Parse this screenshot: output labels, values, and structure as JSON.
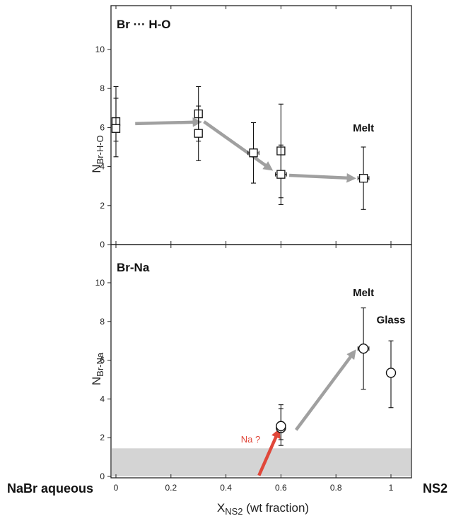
{
  "chart_data": [
    {
      "type": "scatter",
      "panel_label": "Br ··· H-O",
      "ylabel_main": "N",
      "ylabel_sub": "Br-H-O",
      "xlim": [
        -0.04,
        1.08
      ],
      "ylim": [
        0,
        11.5
      ],
      "yticks": [
        0,
        2,
        4,
        6,
        8,
        10
      ],
      "marker": "square",
      "points": [
        {
          "x": 0.0,
          "y": 6.3,
          "yerr": [
            5.3,
            7.5
          ]
        },
        {
          "x": 0.0,
          "y": 5.95,
          "yerr": [
            4.5,
            8.1
          ]
        },
        {
          "x": 0.3,
          "y": 6.7,
          "yerr": [
            5.3,
            8.1
          ]
        },
        {
          "x": 0.3,
          "y": 5.7,
          "yerr": [
            4.3,
            7.1
          ]
        },
        {
          "x": 0.5,
          "y": 4.7,
          "yerr": [
            3.15,
            6.25
          ],
          "xerr": [
            0.48,
            0.52
          ]
        },
        {
          "x": 0.6,
          "y": 4.8,
          "yerr": [
            2.4,
            7.2
          ]
        },
        {
          "x": 0.6,
          "y": 3.6,
          "yerr": [
            2.05,
            5.1
          ],
          "xerr": [
            0.58,
            0.62
          ]
        },
        {
          "x": 0.9,
          "y": 3.4,
          "yerr": [
            1.8,
            5.0
          ],
          "xerr": [
            0.88,
            0.92
          ]
        }
      ],
      "annotations": [
        {
          "text": "Melt",
          "x": 0.9,
          "y": 5.8
        }
      ],
      "arrows": [
        {
          "from": [
            0.07,
            6.2
          ],
          "to": [
            0.3,
            6.28
          ]
        },
        {
          "from": [
            0.32,
            6.3
          ],
          "to": [
            0.56,
            3.9
          ]
        },
        {
          "from": [
            0.63,
            3.55
          ],
          "to": [
            0.86,
            3.4
          ]
        }
      ]
    },
    {
      "type": "scatter",
      "panel_label": "Br-Na",
      "ylabel_main": "N",
      "ylabel_sub": "Br-Na",
      "xlim": [
        -0.04,
        1.08
      ],
      "ylim": [
        0,
        11.5
      ],
      "yticks": [
        0,
        2,
        4,
        6,
        8,
        10
      ],
      "marker": "circle",
      "shaded_band": [
        0,
        1.45
      ],
      "points": [
        {
          "x": 0.6,
          "y": 2.5,
          "yerr": [
            1.6,
            3.7
          ]
        },
        {
          "x": 0.6,
          "y": 2.6,
          "yerr": [
            1.9,
            3.5
          ]
        },
        {
          "x": 0.9,
          "y": 6.6,
          "yerr": [
            4.5,
            8.7
          ],
          "xerr": [
            0.88,
            0.92
          ]
        },
        {
          "x": 1.0,
          "y": 5.35,
          "yerr": [
            3.55,
            7.0
          ]
        }
      ],
      "annotations": [
        {
          "text": "Melt",
          "x": 0.9,
          "y": 9.3
        },
        {
          "text": "Glass",
          "x": 1.0,
          "y": 7.9
        }
      ],
      "arrows": [
        {
          "from": [
            0.655,
            2.4
          ],
          "to": [
            0.865,
            6.4
          ],
          "color": "#a0a0a0"
        },
        {
          "from": [
            0.52,
            0.05
          ],
          "to": [
            0.59,
            2.3
          ],
          "color": "#e0473a"
        }
      ],
      "red_label": "Na ?",
      "xticks": [
        0,
        0.2,
        0.4,
        0.6,
        0.8,
        1.0
      ],
      "xtick_labels": [
        "0",
        "0.2",
        "0.4",
        "0.6",
        "0.8",
        "1"
      ]
    }
  ],
  "x_axis": {
    "label_main": "X",
    "label_sub": "NS2",
    "label_rest": " (wt fraction)",
    "left_end_label": "NaBr aqueous",
    "right_end_label": "NS2"
  }
}
